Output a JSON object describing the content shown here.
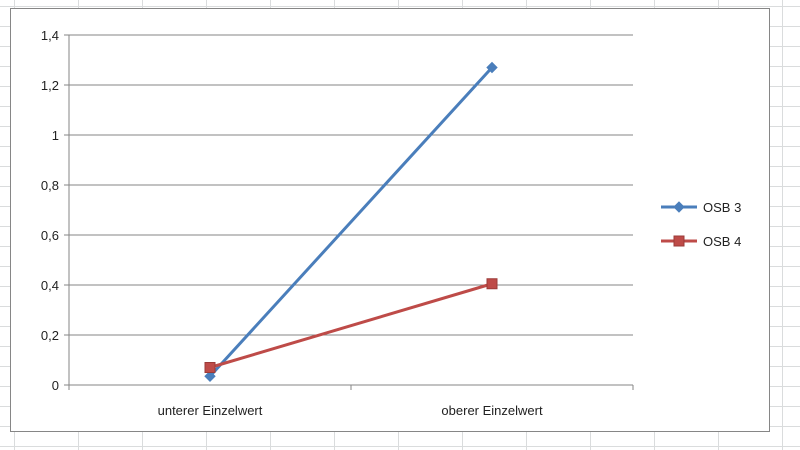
{
  "chart_data": {
    "type": "line",
    "categories": [
      "unterer Einzelwert",
      "oberer Einzelwert"
    ],
    "series": [
      {
        "name": "OSB 3",
        "values": [
          0.035,
          1.27
        ],
        "color": "#4a7ebb",
        "marker": "diamond"
      },
      {
        "name": "OSB 4",
        "values": [
          0.07,
          0.405
        ],
        "color": "#be4b48",
        "marker": "square"
      }
    ],
    "ylim": [
      0,
      1.4
    ],
    "yticks": [
      "0",
      "0,2",
      "0,4",
      "0,6",
      "0,8",
      "1",
      "1,2",
      "1,4"
    ],
    "grid": true,
    "legend": "right",
    "title": "",
    "xlabel": "",
    "ylabel": ""
  }
}
